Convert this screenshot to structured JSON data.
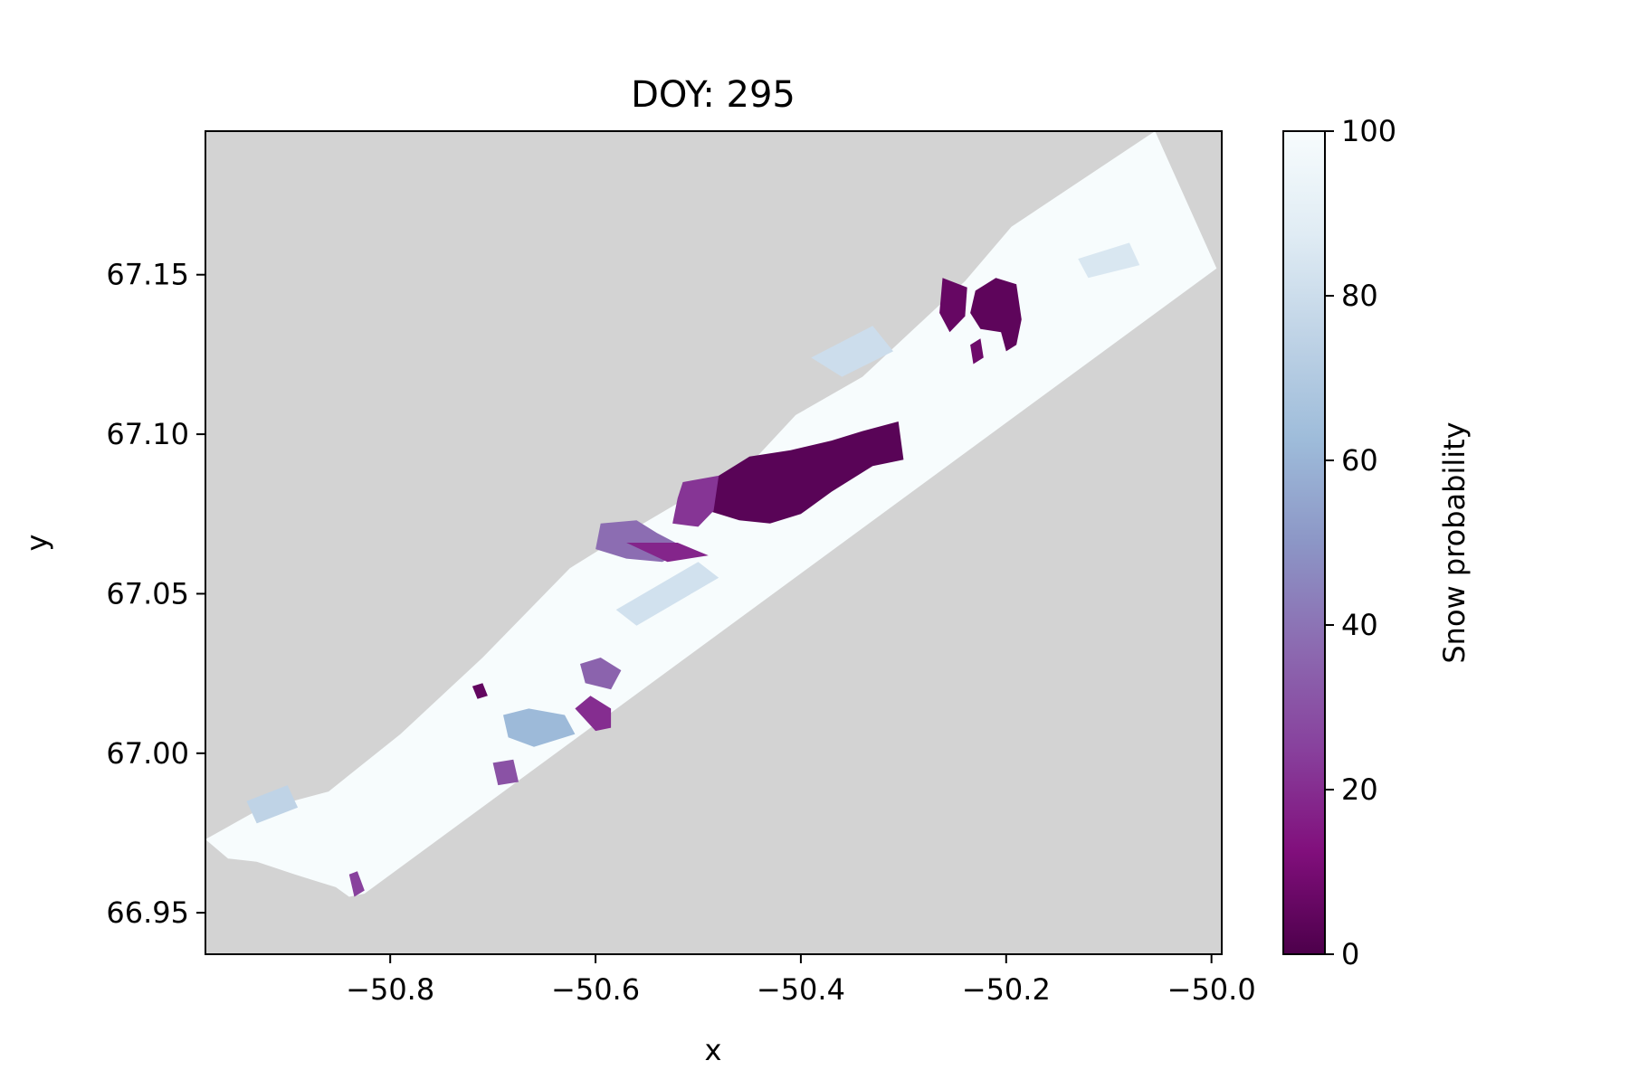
{
  "chart_data": {
    "type": "heatmap",
    "title": "DOY: 295",
    "xlabel": "x",
    "ylabel": "y",
    "xlim": [
      -50.98,
      -49.99
    ],
    "ylim": [
      66.937,
      67.195
    ],
    "x_ticks": [
      -50.8,
      -50.6,
      -50.4,
      -50.2,
      -50.0
    ],
    "x_tick_labels": [
      "−50.8",
      "−50.6",
      "−50.4",
      "−50.2",
      "−50.0"
    ],
    "y_ticks": [
      66.95,
      67.0,
      67.05,
      67.1,
      67.15
    ],
    "y_tick_labels": [
      "66.95",
      "67.00",
      "67.05",
      "67.10",
      "67.15"
    ],
    "background_color": "#d3d3d3",
    "grid": false,
    "colorbar": {
      "label": "Snow probability",
      "colormap": "BuPu_r",
      "stops": [
        "#4d004b",
        "#810f7c",
        "#88419d",
        "#8c6bb1",
        "#8c96c6",
        "#9ebcda",
        "#bfd3e6",
        "#e0ecf4",
        "#f7fcfd"
      ],
      "range": [
        0,
        100
      ],
      "ticks": [
        0,
        20,
        40,
        60,
        80,
        100
      ],
      "tick_labels": [
        "0",
        "20",
        "40",
        "60",
        "80",
        "100"
      ]
    },
    "swath_outline": [
      [
        -50.98,
        66.973
      ],
      [
        -50.958,
        66.967
      ],
      [
        -50.93,
        66.966
      ],
      [
        -50.893,
        66.962
      ],
      [
        -50.873,
        66.96
      ],
      [
        -50.853,
        66.958
      ],
      [
        -50.84,
        66.955
      ],
      [
        -50.825,
        66.956
      ],
      [
        -49.995,
        67.152
      ],
      [
        -50.055,
        67.195
      ],
      [
        -50.195,
        67.165
      ],
      [
        -50.24,
        67.148
      ],
      [
        -50.34,
        67.118
      ],
      [
        -50.405,
        67.106
      ],
      [
        -50.46,
        67.087
      ],
      [
        -50.485,
        67.085
      ],
      [
        -50.58,
        67.067
      ],
      [
        -50.625,
        67.058
      ],
      [
        -50.71,
        67.03
      ],
      [
        -50.79,
        67.006
      ],
      [
        -50.86,
        66.988
      ],
      [
        -50.93,
        66.982
      ]
    ],
    "regions": [
      {
        "polygon": [
          [
            -50.48,
            67.087
          ],
          [
            -50.45,
            67.093
          ],
          [
            -50.41,
            67.095
          ],
          [
            -50.37,
            67.098
          ],
          [
            -50.34,
            67.101
          ],
          [
            -50.305,
            67.104
          ],
          [
            -50.3,
            67.092
          ],
          [
            -50.33,
            67.09
          ],
          [
            -50.37,
            67.082
          ],
          [
            -50.4,
            67.075
          ],
          [
            -50.43,
            67.072
          ],
          [
            -50.46,
            67.073
          ],
          [
            -50.49,
            67.076
          ]
        ],
        "value": 3
      },
      {
        "polygon": [
          [
            -50.515,
            67.085
          ],
          [
            -50.48,
            67.087
          ],
          [
            -50.485,
            67.076
          ],
          [
            -50.5,
            67.071
          ],
          [
            -50.525,
            67.072
          ],
          [
            -50.52,
            67.08
          ]
        ],
        "value": 22
      },
      {
        "polygon": [
          [
            -50.595,
            67.072
          ],
          [
            -50.56,
            67.073
          ],
          [
            -50.54,
            67.069
          ],
          [
            -50.51,
            67.064
          ],
          [
            -50.535,
            67.06
          ],
          [
            -50.57,
            67.061
          ],
          [
            -50.6,
            67.064
          ]
        ],
        "value": 38
      },
      {
        "polygon": [
          [
            -50.57,
            67.066
          ],
          [
            -50.52,
            67.066
          ],
          [
            -50.49,
            67.062
          ],
          [
            -50.53,
            67.06
          ]
        ],
        "value": 18
      },
      {
        "polygon": [
          [
            -50.21,
            67.149
          ],
          [
            -50.19,
            67.147
          ],
          [
            -50.185,
            67.136
          ],
          [
            -50.19,
            67.128
          ],
          [
            -50.2,
            67.126
          ],
          [
            -50.205,
            67.132
          ],
          [
            -50.225,
            67.133
          ],
          [
            -50.235,
            67.138
          ],
          [
            -50.23,
            67.145
          ]
        ],
        "value": 4
      },
      {
        "polygon": [
          [
            -50.262,
            67.149
          ],
          [
            -50.238,
            67.146
          ],
          [
            -50.24,
            67.137
          ],
          [
            -50.255,
            67.132
          ],
          [
            -50.265,
            67.138
          ]
        ],
        "value": 6
      },
      {
        "polygon": [
          [
            -50.235,
            67.128
          ],
          [
            -50.225,
            67.13
          ],
          [
            -50.222,
            67.124
          ],
          [
            -50.232,
            67.122
          ]
        ],
        "value": 8
      },
      {
        "polygon": [
          [
            -50.62,
            67.014
          ],
          [
            -50.605,
            67.018
          ],
          [
            -50.585,
            67.014
          ],
          [
            -50.585,
            67.008
          ],
          [
            -50.6,
            67.007
          ]
        ],
        "value": 20
      },
      {
        "polygon": [
          [
            -50.615,
            67.028
          ],
          [
            -50.595,
            67.03
          ],
          [
            -50.575,
            67.026
          ],
          [
            -50.585,
            67.02
          ],
          [
            -50.61,
            67.022
          ]
        ],
        "value": 35
      },
      {
        "polygon": [
          [
            -50.69,
            67.012
          ],
          [
            -50.665,
            67.014
          ],
          [
            -50.63,
            67.012
          ],
          [
            -50.62,
            67.006
          ],
          [
            -50.66,
            67.002
          ],
          [
            -50.685,
            67.005
          ]
        ],
        "value": 62
      },
      {
        "polygon": [
          [
            -50.84,
            66.962
          ],
          [
            -50.832,
            66.963
          ],
          [
            -50.825,
            66.957
          ],
          [
            -50.835,
            66.955
          ]
        ],
        "value": 25
      },
      {
        "polygon": [
          [
            -50.72,
            67.021
          ],
          [
            -50.71,
            67.022
          ],
          [
            -50.705,
            67.018
          ],
          [
            -50.715,
            67.017
          ]
        ],
        "value": 5
      },
      {
        "polygon": [
          [
            -50.7,
            66.997
          ],
          [
            -50.68,
            66.998
          ],
          [
            -50.675,
            66.991
          ],
          [
            -50.695,
            66.99
          ]
        ],
        "value": 30
      },
      {
        "polygon": [
          [
            -50.39,
            67.124
          ],
          [
            -50.33,
            67.134
          ],
          [
            -50.31,
            67.126
          ],
          [
            -50.36,
            67.118
          ]
        ],
        "value": 80
      },
      {
        "polygon": [
          [
            -50.13,
            67.155
          ],
          [
            -50.08,
            67.16
          ],
          [
            -50.07,
            67.153
          ],
          [
            -50.12,
            67.149
          ]
        ],
        "value": 85
      },
      {
        "polygon": [
          [
            -50.94,
            66.985
          ],
          [
            -50.9,
            66.99
          ],
          [
            -50.89,
            66.983
          ],
          [
            -50.93,
            66.978
          ]
        ],
        "value": 75
      },
      {
        "polygon": [
          [
            -50.58,
            67.045
          ],
          [
            -50.5,
            67.06
          ],
          [
            -50.48,
            67.055
          ],
          [
            -50.56,
            67.04
          ]
        ],
        "value": 82
      }
    ]
  }
}
